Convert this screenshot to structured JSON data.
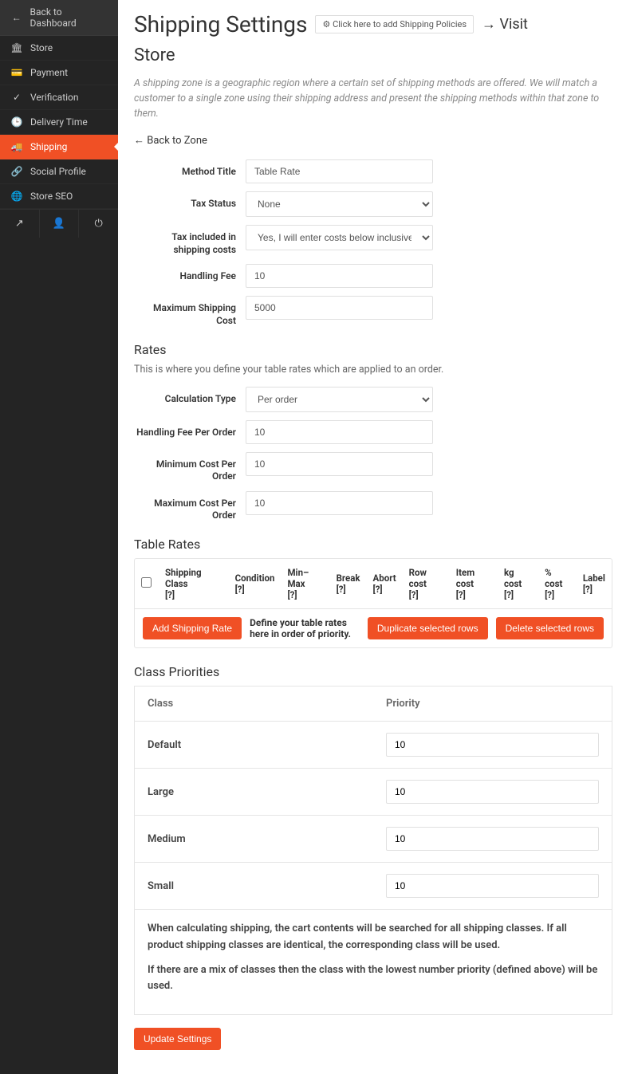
{
  "sidebar": {
    "items": [
      {
        "icon": "←",
        "label": "Back to Dashboard"
      },
      {
        "icon": "🏛",
        "label": "Store"
      },
      {
        "icon": "💳",
        "label": "Payment"
      },
      {
        "icon": "✓",
        "label": "Verification"
      },
      {
        "icon": "🕒",
        "label": "Delivery Time"
      },
      {
        "icon": "🚚",
        "label": "Shipping"
      },
      {
        "icon": "🔗",
        "label": "Social Profile"
      },
      {
        "icon": "🌐",
        "label": "Store SEO"
      }
    ],
    "util": [
      "↗",
      "👤",
      "⏻"
    ]
  },
  "header": {
    "title": "Shipping Settings",
    "policy_btn": "⚙ Click here to add Shipping Policies",
    "visit": "→ Visit",
    "subtitle": "Store",
    "hint": "A shipping zone is a geographic region where a certain set of shipping methods are offered. We will match a customer to a single zone using their shipping address and present the shipping methods within that zone to them.",
    "back_zone": "← Back to Zone"
  },
  "form1": {
    "method_title": {
      "label": "Method Title",
      "value": "Table Rate"
    },
    "tax_status": {
      "label": "Tax Status",
      "value": "None"
    },
    "tax_incl": {
      "label": "Tax included in shipping costs",
      "value": "Yes, I will enter costs below inclusive of tax"
    },
    "handling_fee": {
      "label": "Handling Fee",
      "value": "10"
    },
    "max_ship": {
      "label": "Maximum Shipping Cost",
      "value": "5000"
    }
  },
  "rates": {
    "title": "Rates",
    "hint": "This is where you define your table rates which are applied to an order.",
    "calc_type": {
      "label": "Calculation Type",
      "value": "Per order"
    },
    "handling_po": {
      "label": "Handling Fee Per Order",
      "value": "10"
    },
    "min_po": {
      "label": "Minimum Cost Per Order",
      "value": "10"
    },
    "max_po": {
      "label": "Maximum Cost Per Order",
      "value": "10"
    }
  },
  "table_rates": {
    "title": "Table Rates",
    "cols": [
      "Shipping Class",
      "Condition",
      "Min–Max",
      "Break",
      "Abort",
      "Row cost",
      "Item cost",
      "kg cost",
      "% cost",
      "Label"
    ],
    "q": "[?]",
    "add_btn": "Add Shipping Rate",
    "define_text": "Define your table rates here in order of priority.",
    "dup_btn": "Duplicate selected rows",
    "del_btn": "Delete selected rows"
  },
  "priorities": {
    "title": "Class Priorities",
    "col_class": "Class",
    "col_priority": "Priority",
    "rows": [
      {
        "name": "Default",
        "value": "10"
      },
      {
        "name": "Large",
        "value": "10"
      },
      {
        "name": "Medium",
        "value": "10"
      },
      {
        "name": "Small",
        "value": "10"
      }
    ],
    "note1": "When calculating shipping, the cart contents will be searched for all shipping classes. If all product shipping classes are identical, the corresponding class will be used.",
    "note2": "If there are a mix of classes then the class with the lowest number priority (defined above) will be used."
  },
  "update_btn": "Update Settings"
}
